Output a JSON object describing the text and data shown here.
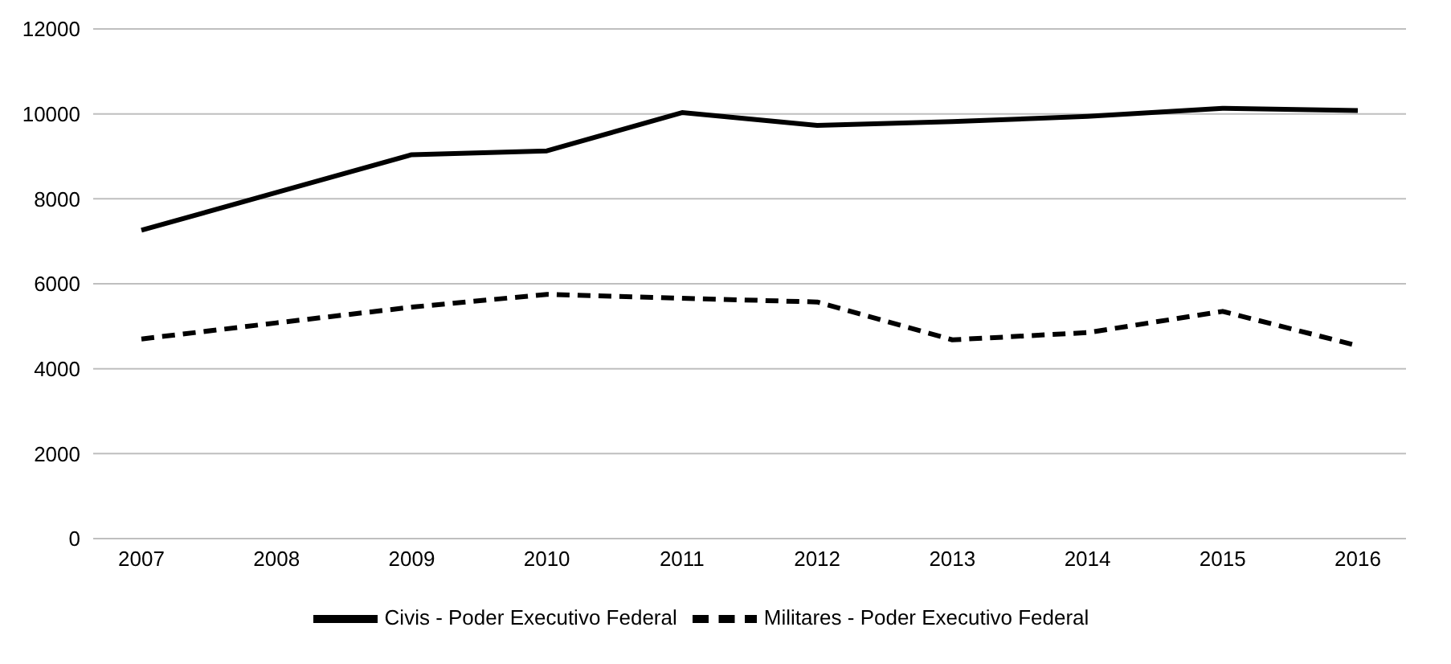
{
  "chart_data": {
    "type": "line",
    "categories": [
      "2007",
      "2008",
      "2009",
      "2010",
      "2011",
      "2012",
      "2013",
      "2014",
      "2015",
      "2016"
    ],
    "series": [
      {
        "name": "Civis - Poder Executivo Federal",
        "color": "#000000",
        "line_style": "solid",
        "values": [
          7260,
          8150,
          9040,
          9130,
          10030,
          9730,
          9820,
          9940,
          10130,
          10080
        ]
      },
      {
        "name": "Militares - Poder Executivo Federal",
        "color": "#000000",
        "line_style": "dashed",
        "values": [
          4700,
          5080,
          5450,
          5750,
          5660,
          5570,
          4680,
          4850,
          5350,
          4540
        ]
      }
    ],
    "ylim": [
      0,
      12000
    ],
    "yticks": [
      0,
      2000,
      4000,
      6000,
      8000,
      10000,
      12000
    ],
    "grid": "y",
    "legend": "bottom",
    "marker": "none"
  }
}
